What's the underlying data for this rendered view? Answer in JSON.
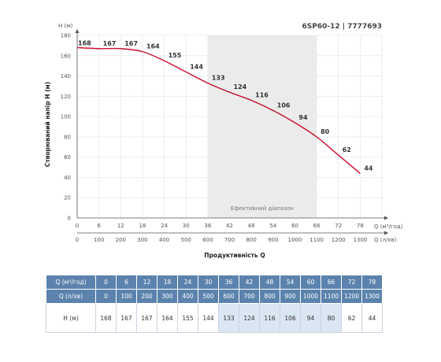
{
  "chart_data": {
    "type": "line",
    "title": "6SP60-12 | 7777693",
    "ylabel": "Створюваний напір Н (м)",
    "yunit": "Н (м)",
    "xlabel": "Продуктивність Q",
    "x1unit": "Q (м³/год)",
    "x2unit": "Q (л/хв)",
    "ylim": [
      0,
      180
    ],
    "yticks": [
      0,
      20,
      40,
      60,
      80,
      100,
      120,
      140,
      160,
      180
    ],
    "xlim": [
      0,
      84
    ],
    "x1ticks": [
      "0",
      "6",
      "12",
      "18",
      "24",
      "30",
      "36",
      "42",
      "48",
      "54",
      "60",
      "66",
      "72",
      "78"
    ],
    "x2ticks": [
      "0",
      "100",
      "200",
      "300",
      "400",
      "500",
      "600",
      "700",
      "800",
      "900",
      "1000",
      "1100",
      "1200",
      "1300"
    ],
    "efficient_range": {
      "label": "Ефективний діапазон",
      "from": 36,
      "to": 66
    },
    "series": [
      {
        "color": "#c8102e",
        "x": [
          0,
          6,
          12,
          18,
          24,
          30,
          36,
          42,
          48,
          54,
          60,
          66,
          72,
          78
        ],
        "y": [
          168,
          167,
          167,
          164,
          155,
          144,
          133,
          124,
          116,
          106,
          94,
          80,
          62,
          44
        ]
      }
    ],
    "grid": true
  },
  "table": {
    "rows": [
      {
        "label": "Q (м³/год)",
        "values": [
          "0",
          "6",
          "12",
          "18",
          "24",
          "30",
          "36",
          "42",
          "48",
          "54",
          "60",
          "66",
          "72",
          "78"
        ]
      },
      {
        "label": "Q (л/хв)",
        "values": [
          "0",
          "100",
          "200",
          "300",
          "400",
          "500",
          "600",
          "700",
          "800",
          "900",
          "1000",
          "1100",
          "1200",
          "1300"
        ]
      },
      {
        "label": "Н (м)",
        "values": [
          "168",
          "167",
          "167",
          "164",
          "155",
          "144",
          "133",
          "124",
          "116",
          "106",
          "94",
          "80",
          "62",
          "44"
        ]
      }
    ],
    "efficient_columns": [
      6,
      7,
      8,
      9,
      10,
      11
    ],
    "colors": {
      "header": "#5b83ad",
      "efficient": "#dbe6f3",
      "border": "#c9d3df"
    }
  }
}
